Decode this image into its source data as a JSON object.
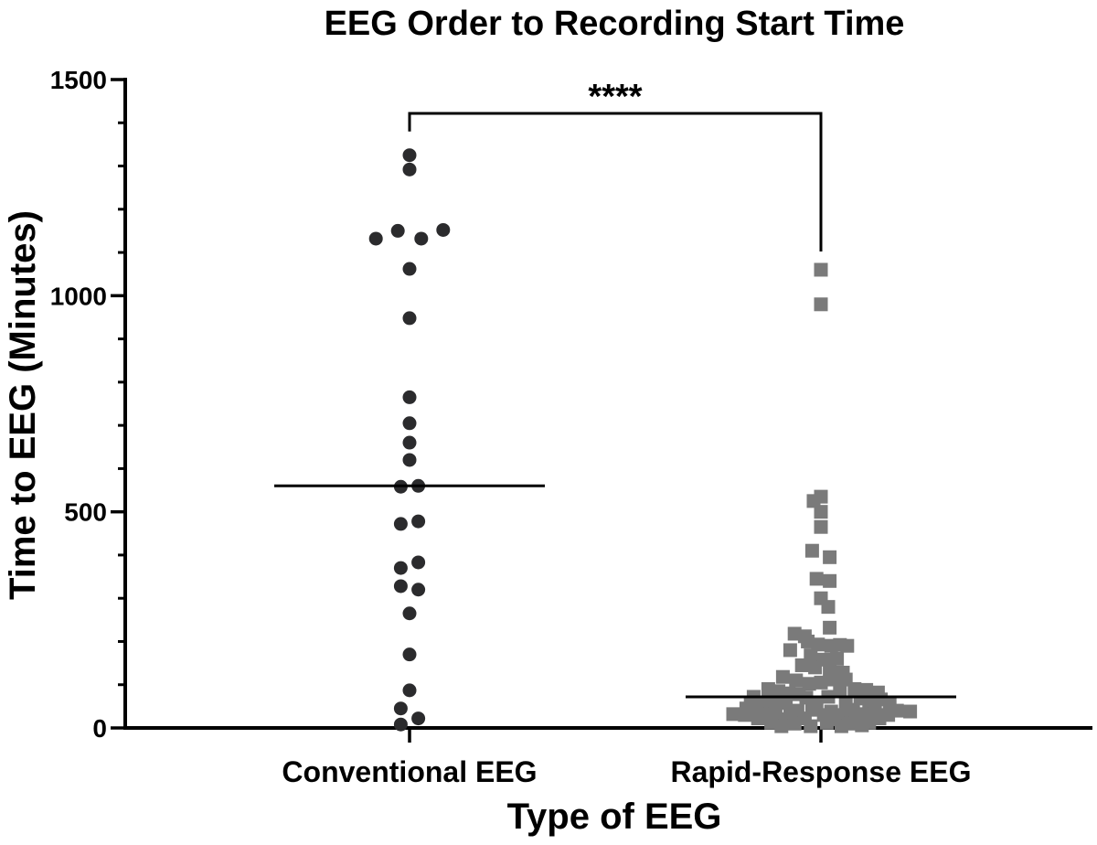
{
  "chart_data": {
    "type": "scatter",
    "title": "EEG Order to Recording Start Time",
    "xlabel": "Type of EEG",
    "ylabel": "Time to EEG (Minutes)",
    "ylim": [
      0,
      1500
    ],
    "yticks_major": [
      0,
      500,
      1000,
      1500
    ],
    "yticks_minor_step": 100,
    "grid": false,
    "legend": "none",
    "categories": [
      "Conventional EEG",
      "Rapid-Response EEG"
    ],
    "significance": {
      "label": "****",
      "between": [
        0,
        1
      ]
    },
    "colors": {
      "conventional": "#2b2b2d",
      "rapid": "#7a7a7a",
      "axis": "#000000"
    },
    "series": [
      {
        "category": "Conventional EEG",
        "marker": "circle",
        "median": 560,
        "points": [
          [
            0,
            1325
          ],
          [
            0,
            1292
          ],
          [
            -0.23,
            1132
          ],
          [
            -0.08,
            1150
          ],
          [
            0.08,
            1132
          ],
          [
            0.23,
            1152
          ],
          [
            0,
            1062
          ],
          [
            0,
            948
          ],
          [
            0,
            765
          ],
          [
            0,
            705
          ],
          [
            0,
            660
          ],
          [
            0,
            620
          ],
          [
            -0.06,
            558
          ],
          [
            0.06,
            560
          ],
          [
            -0.06,
            472
          ],
          [
            0.06,
            478
          ],
          [
            -0.06,
            370
          ],
          [
            0.06,
            383
          ],
          [
            -0.06,
            328
          ],
          [
            0.06,
            320
          ],
          [
            0,
            265
          ],
          [
            0,
            170
          ],
          [
            0,
            87
          ],
          [
            -0.06,
            45
          ],
          [
            0.06,
            22
          ],
          [
            -0.06,
            8
          ]
        ]
      },
      {
        "category": "Rapid-Response EEG",
        "marker": "square",
        "median": 72,
        "points": [
          [
            0,
            1060
          ],
          [
            0,
            980
          ],
          [
            0,
            535
          ],
          [
            -0.05,
            525
          ],
          [
            0,
            500
          ],
          [
            0,
            465
          ],
          [
            -0.06,
            410
          ],
          [
            0.06,
            395
          ],
          [
            -0.03,
            345
          ],
          [
            0.06,
            340
          ],
          [
            0,
            300
          ],
          [
            0.05,
            280
          ],
          [
            0.06,
            232
          ],
          [
            -0.18,
            218
          ],
          [
            -0.11,
            212
          ],
          [
            -0.09,
            200
          ],
          [
            -0.02,
            193
          ],
          [
            0.07,
            190
          ],
          [
            0.13,
            192
          ],
          [
            0.18,
            190
          ],
          [
            -0.21,
            180
          ],
          [
            -0.07,
            168
          ],
          [
            0.02,
            158
          ],
          [
            0.11,
            160
          ],
          [
            -0.13,
            145
          ],
          [
            -0.04,
            140
          ],
          [
            0.06,
            130
          ],
          [
            0.15,
            128
          ],
          [
            -0.26,
            118
          ],
          [
            -0.17,
            110
          ],
          [
            0.08,
            112
          ],
          [
            0.17,
            112
          ],
          [
            -0.08,
            102
          ],
          [
            0.0,
            105
          ],
          [
            -0.36,
            90
          ],
          [
            -0.29,
            85
          ],
          [
            -0.22,
            80
          ],
          [
            -0.15,
            78
          ],
          [
            0.13,
            85
          ],
          [
            0.23,
            90
          ],
          [
            0.31,
            88
          ],
          [
            0.39,
            82
          ],
          [
            -0.46,
            72
          ],
          [
            -0.33,
            68
          ],
          [
            -0.1,
            70
          ],
          [
            0.05,
            72
          ],
          [
            0.27,
            68
          ],
          [
            0.41,
            66
          ],
          [
            -0.48,
            58
          ],
          [
            -0.4,
            55
          ],
          [
            -0.24,
            58
          ],
          [
            -0.03,
            55
          ],
          [
            0.17,
            58
          ],
          [
            0.33,
            58
          ],
          [
            0.47,
            55
          ],
          [
            -0.51,
            45
          ],
          [
            -0.44,
            40
          ],
          [
            -0.31,
            42
          ],
          [
            -0.16,
            40
          ],
          [
            -0.06,
            42
          ],
          [
            0.07,
            38
          ],
          [
            0.22,
            42
          ],
          [
            0.37,
            42
          ],
          [
            0.52,
            40
          ],
          [
            0.61,
            38
          ],
          [
            -0.6,
            32
          ],
          [
            -0.52,
            30
          ],
          [
            -0.37,
            32
          ],
          [
            -0.21,
            30
          ],
          [
            0.02,
            30
          ],
          [
            0.16,
            30
          ],
          [
            0.3,
            32
          ],
          [
            0.46,
            30
          ],
          [
            -0.43,
            22
          ],
          [
            -0.28,
            20
          ],
          [
            -0.11,
            22
          ],
          [
            0.11,
            20
          ],
          [
            0.24,
            22
          ],
          [
            0.4,
            22
          ],
          [
            -0.34,
            12
          ],
          [
            -0.18,
            10
          ],
          [
            0.04,
            12
          ],
          [
            0.19,
            10
          ],
          [
            0.33,
            12
          ],
          [
            -0.27,
            4
          ],
          [
            -0.07,
            4
          ],
          [
            0.14,
            4
          ],
          [
            0.28,
            6
          ]
        ]
      }
    ]
  }
}
